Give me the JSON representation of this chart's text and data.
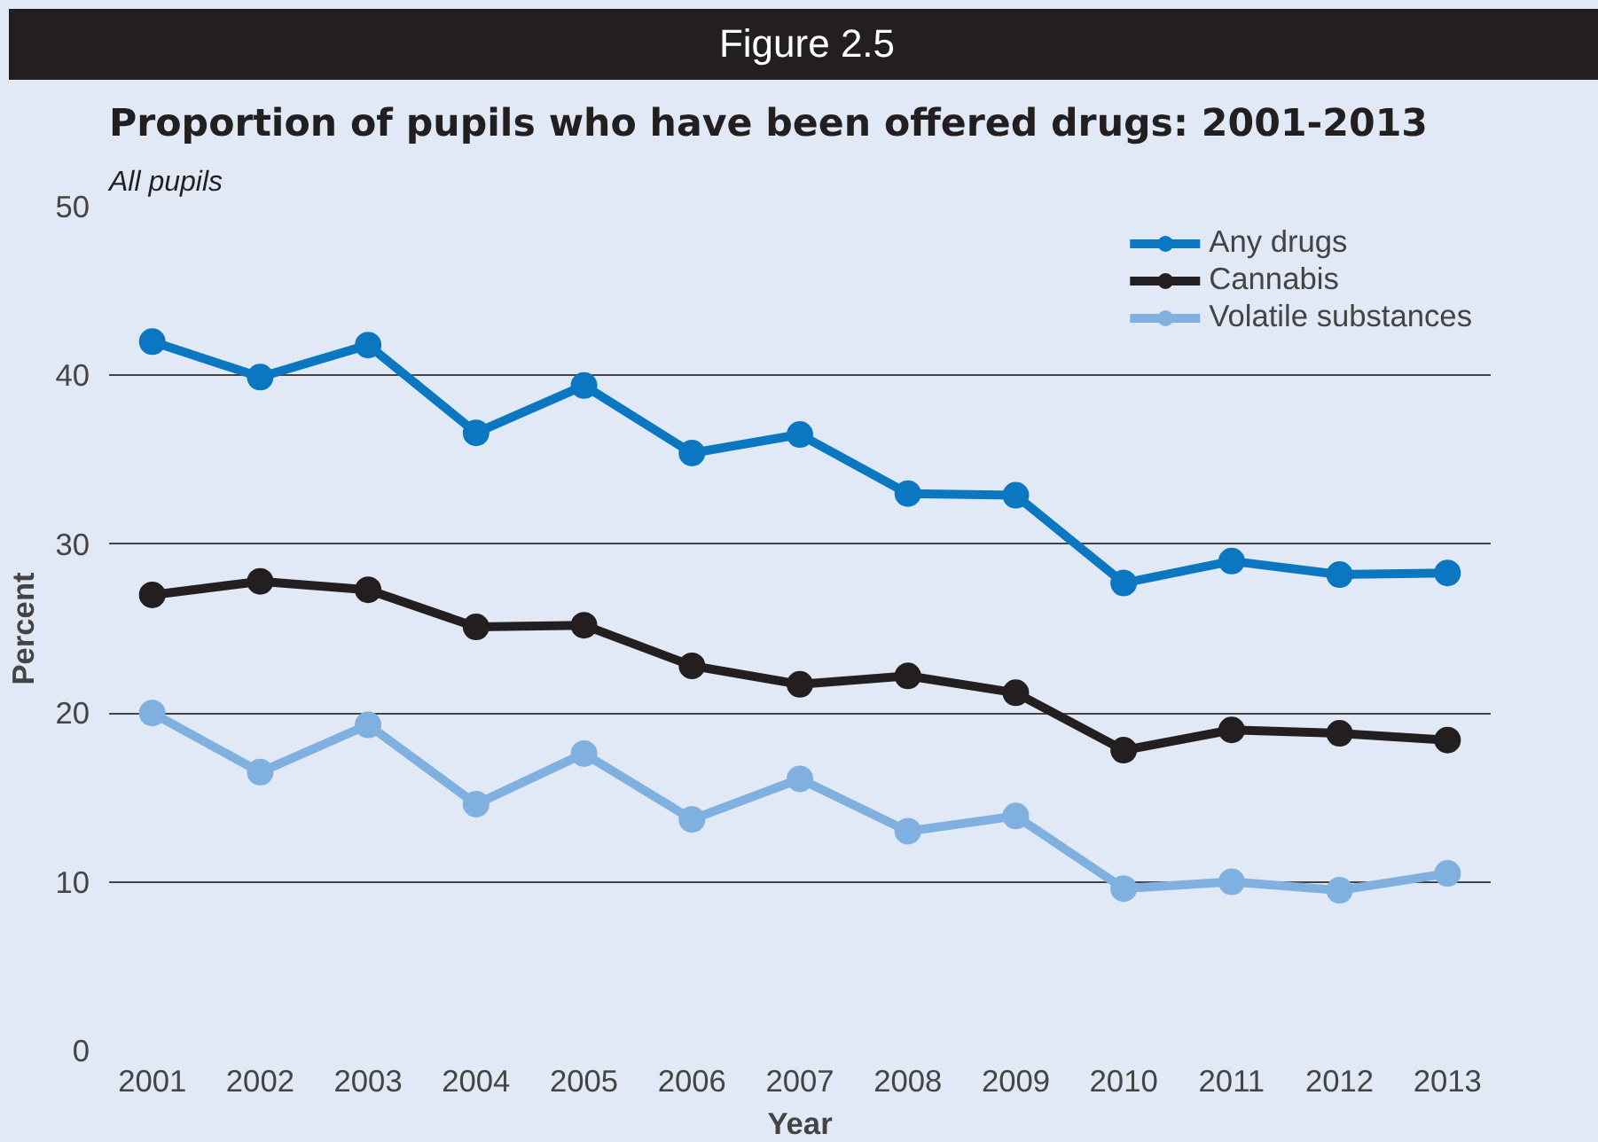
{
  "chart_data": {
    "type": "line",
    "title": "Proportion of pupils who have been offered drugs: 2001-2013",
    "subtitle": "All pupils",
    "annotations": [
      "Figure 2.5"
    ],
    "xlabel": "Year",
    "ylabel": "Percent",
    "categories": [
      "2001",
      "2002",
      "2003",
      "2004",
      "2005",
      "2006",
      "2007",
      "2008",
      "2009",
      "2010",
      "2011",
      "2012",
      "2013"
    ],
    "series": [
      {
        "name": "Any drugs",
        "color": "#0a77c0",
        "values": [
          42.0,
          39.9,
          41.8,
          36.6,
          39.4,
          35.4,
          36.5,
          33.0,
          32.9,
          27.7,
          29.0,
          28.2,
          28.3
        ]
      },
      {
        "name": "Cannabis",
        "color": "#231f20",
        "values": [
          27.0,
          27.8,
          27.3,
          25.1,
          25.2,
          22.8,
          21.7,
          22.2,
          21.2,
          17.8,
          19.0,
          18.8,
          18.4
        ]
      },
      {
        "name": "Volatile substances",
        "color": "#7fb0e0",
        "values": [
          20.0,
          16.5,
          19.3,
          14.6,
          17.6,
          13.7,
          16.1,
          13.0,
          13.9,
          9.6,
          10.0,
          9.5,
          10.5
        ]
      }
    ],
    "ylim": [
      0,
      50
    ],
    "yticks": [
      0,
      10,
      20,
      30,
      40,
      50
    ],
    "grid": "y",
    "legend": "top right",
    "marker": "circle",
    "line_style": "solid"
  }
}
